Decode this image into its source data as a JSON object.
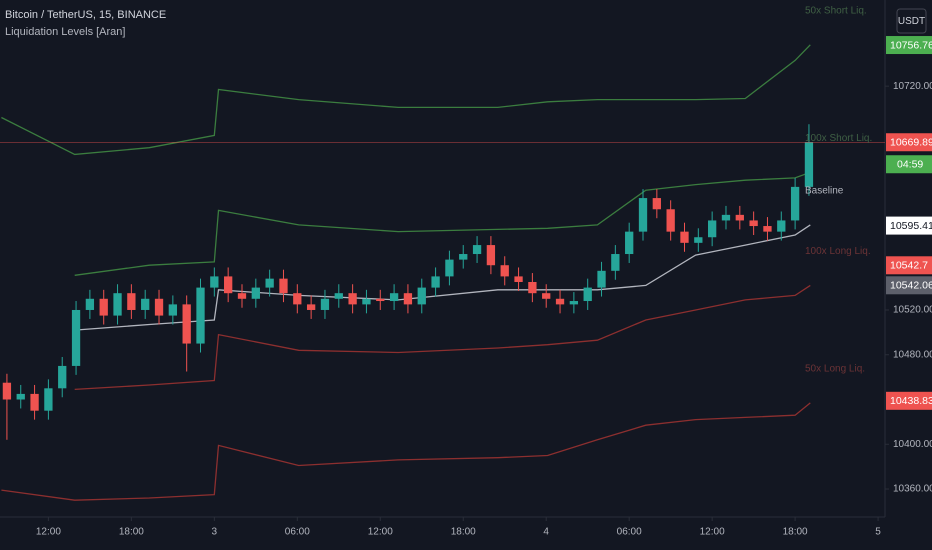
{
  "chart_data": {
    "type": "candlestick",
    "title": "Bitcoin / TetherUS, 15, BINANCE",
    "indicator": "Liquidation Levels [Aran]",
    "currency_button": "USDT",
    "up_color": "#26a69a",
    "down_color": "#ef5350",
    "x": [
      9,
      10,
      11,
      12,
      13,
      14,
      15,
      16,
      17,
      18,
      19,
      20,
      21,
      22,
      23,
      24,
      25,
      26,
      27,
      28,
      29,
      30,
      31,
      32,
      33,
      34,
      35,
      36,
      37,
      38,
      39,
      40,
      41,
      42,
      43,
      44,
      45,
      46,
      47,
      48,
      49,
      50,
      51,
      52,
      53,
      54,
      55,
      56,
      57,
      58,
      59,
      60,
      61,
      62,
      63,
      64,
      65,
      66,
      67
    ],
    "open": [
      10455,
      10440,
      10445,
      10430,
      10450,
      10470,
      10520,
      10530,
      10515,
      10535,
      10520,
      10530,
      10515,
      10525,
      10490,
      10540,
      10550,
      10535,
      10530,
      10540,
      10548,
      10535,
      10525,
      10520,
      10530,
      10535,
      10525,
      10530,
      10528,
      10535,
      10525,
      10540,
      10550,
      10565,
      10570,
      10578,
      10560,
      10550,
      10545,
      10535,
      10530,
      10525,
      10528,
      10540,
      10555,
      10570,
      10590,
      10620,
      10610,
      10590,
      10580,
      10585,
      10600,
      10605,
      10600,
      10595,
      10590,
      10600,
      10630
    ],
    "high": [
      10463,
      10453,
      10453,
      10458,
      10478,
      10528,
      10538,
      10538,
      10543,
      10543,
      10538,
      10538,
      10533,
      10533,
      10548,
      10558,
      10558,
      10543,
      10548,
      10556,
      10556,
      10543,
      10533,
      10538,
      10543,
      10543,
      10538,
      10538,
      10543,
      10543,
      10548,
      10558,
      10573,
      10578,
      10586,
      10586,
      10568,
      10558,
      10553,
      10543,
      10538,
      10536,
      10548,
      10563,
      10578,
      10598,
      10628,
      10628,
      10618,
      10598,
      10593,
      10608,
      10613,
      10613,
      10608,
      10603,
      10608,
      10638,
      10686
    ],
    "low": [
      10404,
      10432,
      10422,
      10422,
      10442,
      10462,
      10512,
      10507,
      10507,
      10512,
      10512,
      10507,
      10507,
      10465,
      10482,
      10532,
      10527,
      10522,
      10522,
      10532,
      10527,
      10517,
      10512,
      10512,
      10522,
      10517,
      10517,
      10520,
      10520,
      10517,
      10517,
      10532,
      10542,
      10557,
      10562,
      10552,
      10542,
      10537,
      10527,
      10522,
      10517,
      10517,
      10520,
      10532,
      10547,
      10562,
      10582,
      10602,
      10582,
      10572,
      10572,
      10577,
      10592,
      10592,
      10587,
      10582,
      10582,
      10592,
      10622
    ],
    "close": [
      10440,
      10445,
      10430,
      10450,
      10470,
      10520,
      10530,
      10515,
      10535,
      10520,
      10530,
      10515,
      10525,
      10490,
      10540,
      10550,
      10535,
      10530,
      10540,
      10548,
      10535,
      10525,
      10520,
      10530,
      10535,
      10525,
      10530,
      10528,
      10535,
      10525,
      10540,
      10550,
      10565,
      10570,
      10578,
      10560,
      10550,
      10545,
      10535,
      10530,
      10525,
      10528,
      10540,
      10555,
      10570,
      10590,
      10620,
      10610,
      10590,
      10580,
      10585,
      10600,
      10605,
      10600,
      10595,
      10590,
      10600,
      10630,
      10669.89
    ],
    "lines": {
      "x": [
        8.6,
        13.9,
        19.3,
        24.0,
        24.3,
        30.1,
        37.3,
        44.5,
        48.1,
        51.7,
        55.2,
        58.8,
        62.4,
        66.0,
        67.1
      ],
      "series": [
        {
          "name": "50x Short Liq.",
          "color": "#3b7d3f",
          "label_color": "#3f5f44",
          "values": [
            10692,
            10659,
            10665,
            10676,
            10717,
            10708,
            10701,
            10701,
            10706,
            10708,
            10708,
            10708,
            10709,
            10743,
            10757
          ]
        },
        {
          "name": "100x Short Liq.",
          "color": "#3b7d3f",
          "label_color": "#3f5f44",
          "values": [
            null,
            10551,
            10560,
            10563,
            10609,
            10596,
            10590,
            10592,
            10593,
            10596,
            10627,
            10632,
            10636,
            10638,
            10643
          ]
        },
        {
          "name": "Baseline",
          "color": "#b2b5be",
          "label_color": "#b2b5be",
          "values": [
            null,
            10502,
            10507,
            10511,
            10538,
            10533,
            10529,
            10538,
            10538,
            10538,
            10542,
            10569,
            10578,
            10587,
            10596
          ]
        },
        {
          "name": "100x Long Liq.",
          "color": "#8c2f2f",
          "label_color": "#6b3336",
          "values": [
            null,
            10449,
            10453,
            10457,
            10498,
            10484,
            10482,
            10486,
            10489,
            10493,
            10511,
            10520,
            10529,
            10533,
            10542
          ]
        },
        {
          "name": "50x Long Liq.",
          "color": "#8c2f2f",
          "label_color": "#6b3336",
          "values": [
            10359,
            10350,
            10352,
            10355,
            10399,
            10381,
            10386,
            10388,
            10390,
            10404,
            10417,
            10422,
            10424,
            10426,
            10437
          ]
        }
      ]
    },
    "xlim": [
      8.5,
      72.5
    ],
    "xticks": [
      {
        "value": 12,
        "label": "12:00"
      },
      {
        "value": 18,
        "label": "18:00"
      },
      {
        "value": 24,
        "label": "3"
      },
      {
        "value": 30,
        "label": "06:00"
      },
      {
        "value": 36,
        "label": "12:00"
      },
      {
        "value": 42,
        "label": "18:00"
      },
      {
        "value": 48,
        "label": "4"
      },
      {
        "value": 54,
        "label": "06:00"
      },
      {
        "value": 60,
        "label": "12:00"
      },
      {
        "value": 66,
        "label": "18:00"
      },
      {
        "value": 72,
        "label": "5"
      }
    ],
    "ylim": [
      10335,
      10797
    ],
    "yticks": [
      {
        "value": 10360,
        "label": "10360.00"
      },
      {
        "value": 10400,
        "label": "10400.00"
      },
      {
        "value": 10480,
        "label": "10480.00"
      },
      {
        "value": 10520,
        "label": "10520.00"
      },
      {
        "value": 10720,
        "label": "10720.00"
      }
    ],
    "axis_labels": [
      {
        "value": 10756.76,
        "color": "#4caf50"
      },
      {
        "value": 10669.89,
        "color": "#ef5350"
      },
      {
        "value": 10595.41,
        "color": "#ffffff"
      },
      {
        "value": 10542.7,
        "color": "#ef5350"
      },
      {
        "value": 10542.06,
        "color": "#5d606b"
      },
      {
        "value": 10438.83,
        "color": "#ef5350"
      }
    ],
    "countdown": "04:59"
  }
}
